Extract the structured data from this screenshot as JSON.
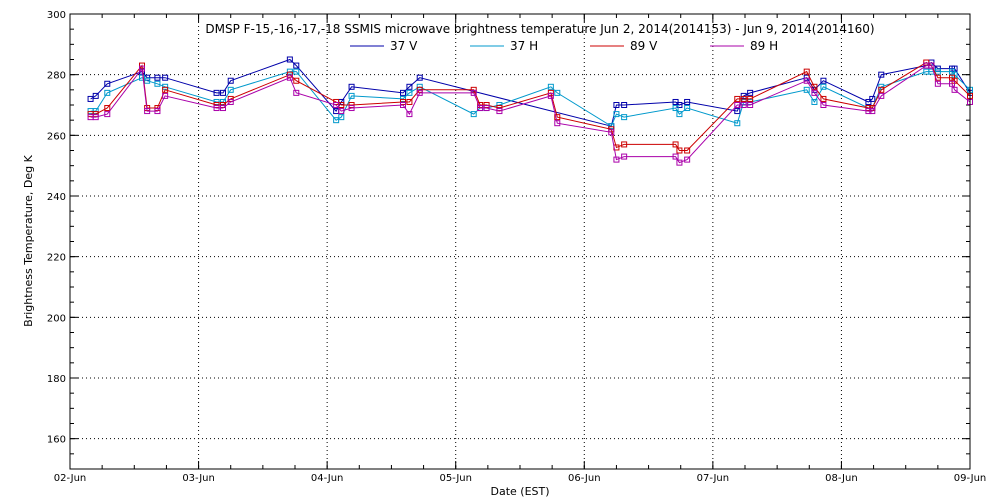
{
  "chart_data": {
    "type": "line",
    "title": "DMSP F-15,-16,-17,-18 SSMIS microwave brightness temperature Jun  2, 2014(2014153) - Jun  9, 2014(2014160)",
    "xlabel": "Date (EST)",
    "ylabel": "Brightness Temperature, Deg K",
    "xlim": [
      0,
      7
    ],
    "ylim": [
      150,
      300
    ],
    "x_ticks": [
      {
        "value": 0,
        "label": "02-Jun"
      },
      {
        "value": 1,
        "label": "03-Jun"
      },
      {
        "value": 2,
        "label": "04-Jun"
      },
      {
        "value": 3,
        "label": "05-Jun"
      },
      {
        "value": 4,
        "label": "06-Jun"
      },
      {
        "value": 5,
        "label": "07-Jun"
      },
      {
        "value": 6,
        "label": "08-Jun"
      },
      {
        "value": 7,
        "label": "09-Jun"
      }
    ],
    "y_ticks": [
      160,
      180,
      200,
      220,
      240,
      260,
      280,
      300
    ],
    "x_minor_per_major": 4,
    "y_minor_per_major": 4,
    "grid": true,
    "legend_position": "top",
    "x_unit": "days since 02-Jun 00:00 EST",
    "series": [
      {
        "name": "37 V",
        "color": "#0000aa",
        "x": [
          0.16,
          0.2,
          0.29,
          0.56,
          0.6,
          0.68,
          0.74,
          1.14,
          1.19,
          1.25,
          1.71,
          1.76,
          2.07,
          2.11,
          2.19,
          2.59,
          2.64,
          2.72,
          4.21,
          4.25,
          4.31,
          4.71,
          4.74,
          4.8,
          5.19,
          5.24,
          5.29,
          5.73,
          5.79,
          5.86,
          6.21,
          6.24,
          6.31,
          6.66,
          6.7,
          6.75,
          6.86,
          6.88,
          7.0
        ],
        "y": [
          272,
          273,
          277,
          281,
          279,
          279,
          279,
          274,
          274,
          278,
          285,
          283,
          268,
          271,
          276,
          274,
          276,
          279,
          263,
          270,
          270,
          271,
          270,
          271,
          268,
          273,
          274,
          279,
          275,
          278,
          271,
          272,
          280,
          283,
          284,
          282,
          282,
          282,
          274
        ]
      },
      {
        "name": "37 H",
        "color": "#0099cc",
        "x": [
          0.16,
          0.2,
          0.29,
          0.56,
          0.6,
          0.68,
          0.74,
          1.14,
          1.19,
          1.25,
          1.71,
          1.76,
          2.07,
          2.11,
          2.19,
          2.59,
          2.64,
          2.72,
          3.14,
          3.19,
          3.24,
          3.34,
          3.74,
          3.79,
          4.21,
          4.25,
          4.31,
          4.71,
          4.74,
          4.8,
          5.19,
          5.24,
          5.29,
          5.73,
          5.79,
          5.86,
          6.21,
          6.24,
          6.31,
          6.66,
          6.7,
          6.75,
          6.86,
          6.88,
          7.0
        ],
        "y": [
          268,
          268,
          274,
          279,
          278,
          277,
          276,
          271,
          271,
          275,
          281,
          281,
          265,
          266,
          273,
          272,
          274,
          276,
          267,
          269,
          269,
          270,
          276,
          274,
          263,
          267,
          266,
          269,
          267,
          269,
          264,
          271,
          271,
          275,
          271,
          276,
          269,
          269,
          276,
          281,
          281,
          281,
          281,
          280,
          275
        ]
      },
      {
        "name": "89 V",
        "color": "#cc0000",
        "x": [
          0.16,
          0.2,
          0.29,
          0.56,
          0.6,
          0.68,
          0.74,
          1.14,
          1.19,
          1.25,
          1.71,
          1.76,
          2.07,
          2.11,
          2.19,
          2.59,
          2.64,
          2.72,
          3.14,
          3.19,
          3.24,
          3.34,
          3.74,
          3.79,
          4.21,
          4.25,
          4.31,
          4.71,
          4.74,
          4.8,
          5.19,
          5.24,
          5.29,
          5.73,
          5.79,
          5.86,
          6.21,
          6.24,
          6.31,
          6.66,
          6.7,
          6.75,
          6.86,
          6.88,
          7.0
        ],
        "y": [
          267,
          267,
          269,
          283,
          269,
          269,
          275,
          270,
          270,
          272,
          280,
          278,
          271,
          270,
          270,
          271,
          271,
          275,
          275,
          270,
          270,
          269,
          274,
          266,
          262,
          256,
          257,
          257,
          255,
          255,
          272,
          272,
          272,
          281,
          276,
          272,
          269,
          269,
          275,
          284,
          283,
          279,
          279,
          278,
          273
        ]
      },
      {
        "name": "89 H",
        "color": "#aa00aa",
        "x": [
          0.16,
          0.2,
          0.29,
          0.56,
          0.6,
          0.68,
          0.74,
          1.14,
          1.19,
          1.25,
          1.71,
          1.76,
          2.07,
          2.11,
          2.19,
          2.59,
          2.64,
          2.72,
          3.14,
          3.19,
          3.24,
          3.34,
          3.74,
          3.79,
          4.21,
          4.25,
          4.31,
          4.71,
          4.74,
          4.8,
          5.19,
          5.24,
          5.29,
          5.73,
          5.79,
          5.86,
          6.21,
          6.24,
          6.31,
          6.66,
          6.7,
          6.75,
          6.86,
          6.88,
          7.0
        ],
        "y": [
          266,
          266,
          267,
          282,
          268,
          268,
          273,
          269,
          269,
          271,
          279,
          274,
          270,
          268,
          269,
          270,
          267,
          274,
          274,
          269,
          269,
          268,
          273,
          264,
          261,
          252,
          253,
          253,
          251,
          252,
          270,
          270,
          270,
          278,
          274,
          270,
          268,
          268,
          273,
          283,
          283,
          277,
          277,
          275,
          271
        ]
      }
    ]
  }
}
